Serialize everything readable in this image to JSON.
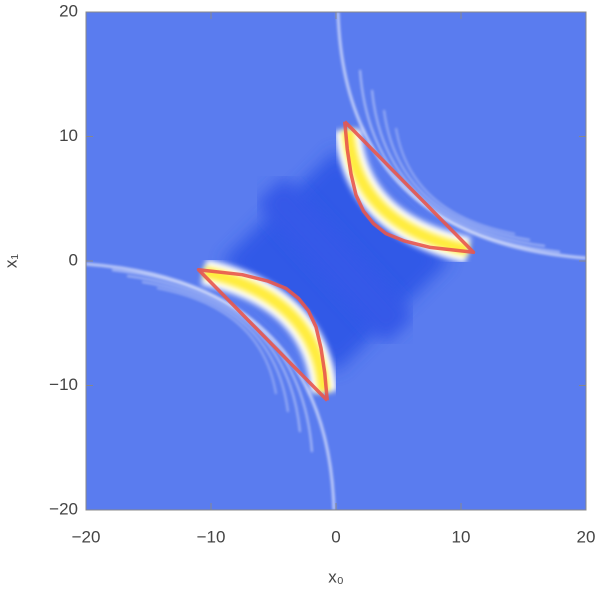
{
  "chart_data": {
    "type": "density",
    "xlabel": "x₀",
    "ylabel": "x₁",
    "xlim": [
      -20,
      20
    ],
    "ylim": [
      -20,
      20
    ],
    "xticks": [
      {
        "value": -20,
        "label": "−20"
      },
      {
        "value": -10,
        "label": "−10"
      },
      0,
      10,
      20
    ],
    "yticks": [
      {
        "value": -20,
        "label": "−20"
      },
      {
        "value": -10,
        "label": "−10"
      },
      0,
      10,
      20
    ],
    "curves": [
      {
        "color": "#e8564c",
        "x": [
          0.7,
          0.9,
          1.2,
          1.6,
          2.2,
          3,
          4,
          5.5,
          7.5,
          11,
          0.7
        ],
        "y": [
          11.2,
          9,
          7,
          5.3,
          4,
          3,
          2.2,
          1.6,
          1.1,
          0.7,
          11.2
        ]
      },
      {
        "color": "#e8564c",
        "x": [
          -0.7,
          -0.9,
          -1.2,
          -1.6,
          -2.2,
          -3,
          -4,
          -5.5,
          -7.5,
          -11,
          -0.7
        ],
        "y": [
          -11.2,
          -9,
          -7,
          -5.3,
          -4,
          -3,
          -2.2,
          -1.6,
          -1.1,
          -0.7,
          -11.2
        ]
      }
    ]
  }
}
